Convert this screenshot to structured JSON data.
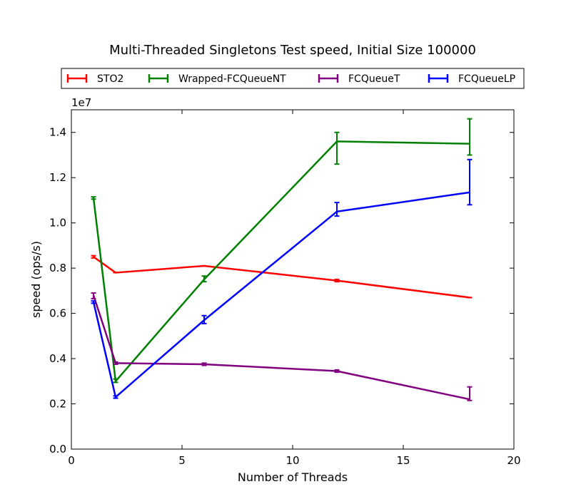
{
  "chart_data": {
    "type": "line",
    "title": "Multi-Threaded Singletons Test speed, Initial Size 100000",
    "xlabel": "Number of Threads",
    "ylabel": "speed (ops/s)",
    "y_offset_label": "1e7",
    "xlim": [
      0,
      20
    ],
    "ylim": [
      0.0,
      1.5
    ],
    "xticks": [
      0,
      5,
      10,
      15,
      20
    ],
    "xtick_labels": [
      "0",
      "5",
      "10",
      "15",
      "20"
    ],
    "yticks": [
      0.0,
      0.2,
      0.4,
      0.6,
      0.8,
      1.0,
      1.2,
      1.4
    ],
    "ytick_labels": [
      "0.0",
      "0.2",
      "0.4",
      "0.6",
      "0.8",
      "1.0",
      "1.2",
      "1.4"
    ],
    "grid": false,
    "legend_position": "top, above plot",
    "x": [
      1,
      2,
      6,
      12,
      18
    ],
    "series": [
      {
        "name": "STO2",
        "color": "#ff0000",
        "values": [
          0.85,
          0.78,
          0.81,
          0.745,
          0.67
        ],
        "err_low": [
          0.845,
          0.78,
          0.81,
          0.74,
          0.67
        ],
        "err_high": [
          0.855,
          0.78,
          0.81,
          0.75,
          0.67
        ]
      },
      {
        "name": "Wrapped-FCQueueNT",
        "color": "#008000",
        "values": [
          1.11,
          0.3,
          0.75,
          1.36,
          1.35
        ],
        "err_low": [
          1.105,
          0.295,
          0.74,
          1.26,
          1.3
        ],
        "err_high": [
          1.115,
          0.31,
          0.765,
          1.4,
          1.46
        ]
      },
      {
        "name": "FCQueueT",
        "color": "#800080",
        "values": [
          0.68,
          0.38,
          0.375,
          0.345,
          0.22
        ],
        "err_low": [
          0.665,
          0.375,
          0.37,
          0.34,
          0.215
        ],
        "err_high": [
          0.69,
          0.385,
          0.38,
          0.35,
          0.275
        ]
      },
      {
        "name": "FCQueueLP",
        "color": "#0000ff",
        "values": [
          0.65,
          0.23,
          0.57,
          1.05,
          1.135
        ],
        "err_low": [
          0.645,
          0.225,
          0.555,
          1.03,
          1.08
        ],
        "err_high": [
          0.655,
          0.235,
          0.59,
          1.09,
          1.28
        ]
      }
    ]
  }
}
